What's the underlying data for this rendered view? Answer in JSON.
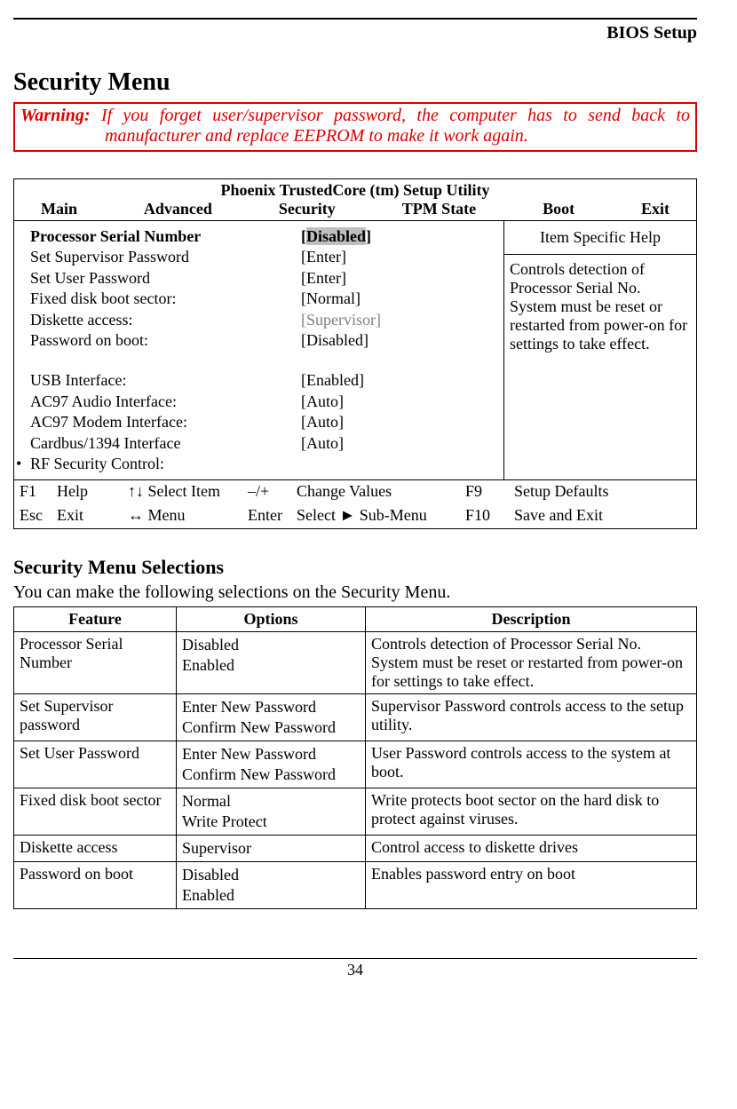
{
  "header": {
    "right": "BIOS Setup"
  },
  "title": "Security Menu",
  "warning": {
    "label": "Warning:",
    "text": "If you forget user/supervisor password, the computer has to send back to manufacturer and replace EEPROM to make it work again."
  },
  "bios": {
    "title": "Phoenix TrustedCore (tm) Setup Utility",
    "menu": [
      "Main",
      "Advanced",
      "Security",
      "TPM State",
      "Boot",
      "Exit"
    ],
    "settings": [
      {
        "label": "Processor Serial Number",
        "bracket_open": "[",
        "value": "Disabled",
        "bracket_close": "]",
        "bold": true,
        "highlight": true
      },
      {
        "label": "Set Supervisor Password",
        "value": "[Enter]"
      },
      {
        "label": "Set User Password",
        "value": "[Enter]"
      },
      {
        "label": "Fixed disk boot sector:",
        "value": "[Normal]"
      },
      {
        "label": "Diskette access:",
        "value": "[Supervisor]",
        "grey": true
      },
      {
        "label": "Password on boot:",
        "value": "[Disabled]"
      },
      {
        "blank": true
      },
      {
        "label": "USB Interface:",
        "value": "[Enabled]"
      },
      {
        "label": "AC97 Audio Interface:",
        "value": "[Auto]"
      },
      {
        "label": "AC97 Modem Interface:",
        "value": "[Auto]"
      },
      {
        "label": "Cardbus/1394 Interface",
        "value": "[Auto]"
      },
      {
        "label": "RF Security Control:",
        "value": "",
        "marker": "•"
      }
    ],
    "help": {
      "title": "Item Specific Help",
      "body": "Controls detection of Processor Serial No. System must be reset or restarted from power-on for settings to take effect."
    },
    "footer": [
      {
        "k1": "F1",
        "k2": "Help",
        "k3": "↑↓ Select Item",
        "k4": "–/+",
        "k5": "Change Values",
        "k6": "F9",
        "k7": "Setup Defaults"
      },
      {
        "k1": "Esc",
        "k2": "Exit",
        "k3": "↔ Menu",
        "k4": "Enter",
        "k5": "Select ► Sub-Menu",
        "k6": "F10",
        "k7": "Save and Exit"
      }
    ]
  },
  "selections": {
    "heading": "Security Menu Selections",
    "intro": "You can make the following selections on the Security Menu.",
    "columns": [
      "Feature",
      "Options",
      "Description"
    ],
    "rows": [
      {
        "feature": "Processor Serial Number",
        "options": [
          "Disabled",
          "Enabled"
        ],
        "desc": "Controls detection of Processor Serial No. System must be reset or restarted from power-on for settings to take effect."
      },
      {
        "feature": "Set Supervisor password",
        "options": [
          "Enter New Password",
          "Confirm New Password"
        ],
        "desc": "Supervisor Password controls access to the setup utility."
      },
      {
        "feature": "Set User Password",
        "options": [
          "Enter New Password",
          "Confirm New Password"
        ],
        "desc": "User Password controls access to the system at boot."
      },
      {
        "feature": "Fixed disk boot sector",
        "options": [
          "Normal",
          "Write Protect"
        ],
        "desc": "Write protects boot sector on the hard disk to protect against viruses."
      },
      {
        "feature": "Diskette access",
        "options": [
          "Supervisor"
        ],
        "desc": "Control access to diskette drives"
      },
      {
        "feature": "Password on boot",
        "options": [
          "Disabled",
          "Enabled"
        ],
        "desc": "Enables password entry on boot"
      }
    ]
  },
  "page_number": "34",
  "colors": {
    "warning_red": "#d90000",
    "grey_text": "#808080",
    "highlight_bg": "#bfbfbf"
  }
}
